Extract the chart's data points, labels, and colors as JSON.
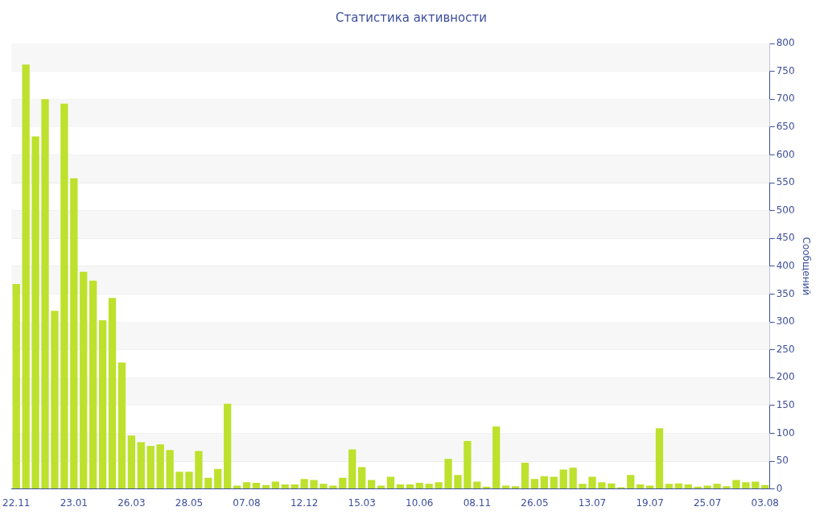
{
  "chart_data": {
    "type": "bar",
    "title": "Статистика активности",
    "ylabel": "Сообщений",
    "categories": [
      "22.11",
      null,
      null,
      null,
      null,
      null,
      "23.01",
      null,
      null,
      null,
      null,
      null,
      "26.03",
      null,
      null,
      null,
      null,
      null,
      "28.05",
      null,
      null,
      null,
      null,
      null,
      "07.08",
      null,
      null,
      null,
      null,
      null,
      "12.12",
      null,
      null,
      null,
      null,
      null,
      "15.03",
      null,
      null,
      null,
      null,
      null,
      "10.06",
      null,
      null,
      null,
      null,
      null,
      "08.11",
      null,
      null,
      null,
      null,
      null,
      "26.05",
      null,
      null,
      null,
      null,
      null,
      "13.07",
      null,
      null,
      null,
      null,
      null,
      "19.07",
      null,
      null,
      null,
      null,
      null,
      "25.07",
      null,
      null,
      null,
      null,
      null,
      "03.08"
    ],
    "values": [
      368,
      762,
      633,
      700,
      320,
      692,
      558,
      390,
      374,
      303,
      343,
      227,
      96,
      84,
      77,
      80,
      70,
      31,
      31,
      68,
      20,
      36,
      153,
      6,
      12,
      11,
      7,
      13,
      8,
      8,
      18,
      16,
      9,
      6,
      20,
      71,
      39,
      16,
      6,
      22,
      8,
      8,
      11,
      9,
      12,
      54,
      25,
      86,
      13,
      4,
      112,
      6,
      5,
      47,
      18,
      23,
      22,
      35,
      38,
      9,
      22,
      12,
      10,
      3,
      25,
      8,
      6,
      109,
      9,
      10,
      8,
      4,
      6,
      9,
      5,
      16,
      12,
      13,
      7
    ],
    "color": "#bde12d",
    "ylim": [
      0,
      800
    ],
    "yticks": [
      0,
      50,
      100,
      150,
      200,
      250,
      300,
      350,
      400,
      450,
      500,
      550,
      600,
      650,
      700,
      750,
      800
    ],
    "grid": "y",
    "legend": false
  }
}
